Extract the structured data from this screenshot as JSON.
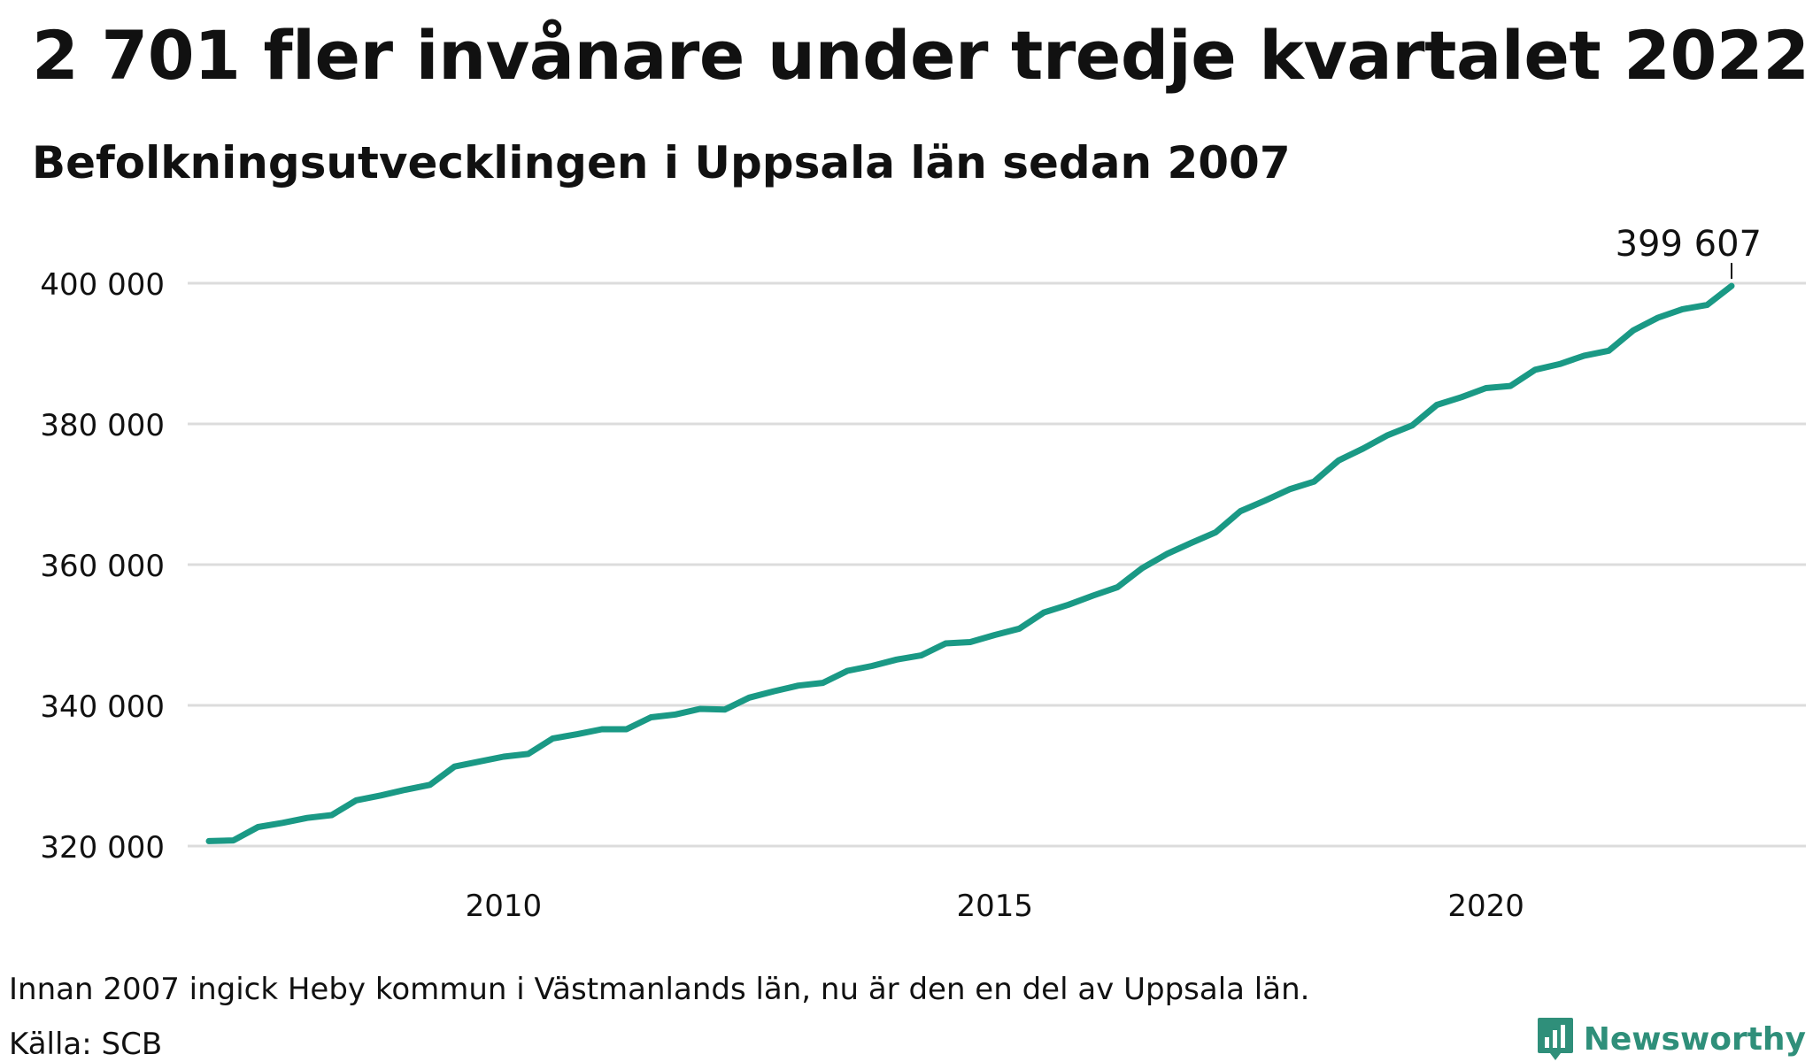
{
  "header": {
    "title": "2 701 fler invånare under tredje kvartalet 2022",
    "subtitle": "Befolkningsutvecklingen i Uppsala län sedan 2007"
  },
  "footer": {
    "note": "Innan 2007 ingick Heby kommun i Västmanlands län, nu är den en del av Uppsala län.",
    "source": "Källa: SCB",
    "brand": "Newsworthy"
  },
  "colors": {
    "line": "#1a9985",
    "grid": "#dcdcdc",
    "text": "#111111",
    "brand": "#2f8f7a"
  },
  "chart_data": {
    "type": "line",
    "title": "",
    "xlabel": "",
    "ylabel": "",
    "x_ticks": [
      "2010",
      "2015",
      "2020"
    ],
    "y_ticks": [
      "320 000",
      "340 000",
      "360 000",
      "380 000",
      "400 000"
    ],
    "y_tick_values": [
      320000,
      340000,
      360000,
      380000,
      400000
    ],
    "ylim": [
      320000,
      400000
    ],
    "grid": true,
    "annotation": {
      "text": "399 607",
      "x": "2022 Q3"
    },
    "series": [
      {
        "x": [
          "2007 Q1",
          "2007 Q2",
          "2007 Q3",
          "2007 Q4",
          "2008 Q1",
          "2008 Q2",
          "2008 Q3",
          "2008 Q4",
          "2009 Q1",
          "2009 Q2",
          "2009 Q3",
          "2009 Q4",
          "2010 Q1",
          "2010 Q2",
          "2010 Q3",
          "2010 Q4",
          "2011 Q1",
          "2011 Q2",
          "2011 Q3",
          "2011 Q4",
          "2012 Q1",
          "2012 Q2",
          "2012 Q3",
          "2012 Q4",
          "2013 Q1",
          "2013 Q2",
          "2013 Q3",
          "2013 Q4",
          "2014 Q1",
          "2014 Q2",
          "2014 Q3",
          "2014 Q4",
          "2015 Q1",
          "2015 Q2",
          "2015 Q3",
          "2015 Q4",
          "2016 Q1",
          "2016 Q2",
          "2016 Q3",
          "2016 Q4",
          "2017 Q1",
          "2017 Q2",
          "2017 Q3",
          "2017 Q4",
          "2018 Q1",
          "2018 Q2",
          "2018 Q3",
          "2018 Q4",
          "2019 Q1",
          "2019 Q2",
          "2019 Q3",
          "2019 Q4",
          "2020 Q1",
          "2020 Q2",
          "2020 Q3",
          "2020 Q4",
          "2021 Q1",
          "2021 Q2",
          "2021 Q3",
          "2021 Q4",
          "2022 Q1",
          "2022 Q2",
          "2022 Q3"
        ],
        "values": [
          320700,
          320800,
          322700,
          323300,
          324000,
          324400,
          326500,
          327200,
          328000,
          328700,
          331300,
          332000,
          332700,
          333100,
          335300,
          335900,
          336600,
          336600,
          338300,
          338700,
          339500,
          339400,
          341100,
          342000,
          342800,
          343200,
          344900,
          345600,
          346500,
          347100,
          348800,
          349000,
          350000,
          350900,
          353200,
          354300,
          355600,
          356800,
          359500,
          361500,
          363100,
          364600,
          367600,
          369100,
          370700,
          371800,
          374800,
          376500,
          378400,
          379800,
          382700,
          383800,
          385100,
          385400,
          387700,
          388500,
          389700,
          390400,
          393300,
          395100,
          396300,
          396900,
          399607
        ]
      }
    ]
  }
}
